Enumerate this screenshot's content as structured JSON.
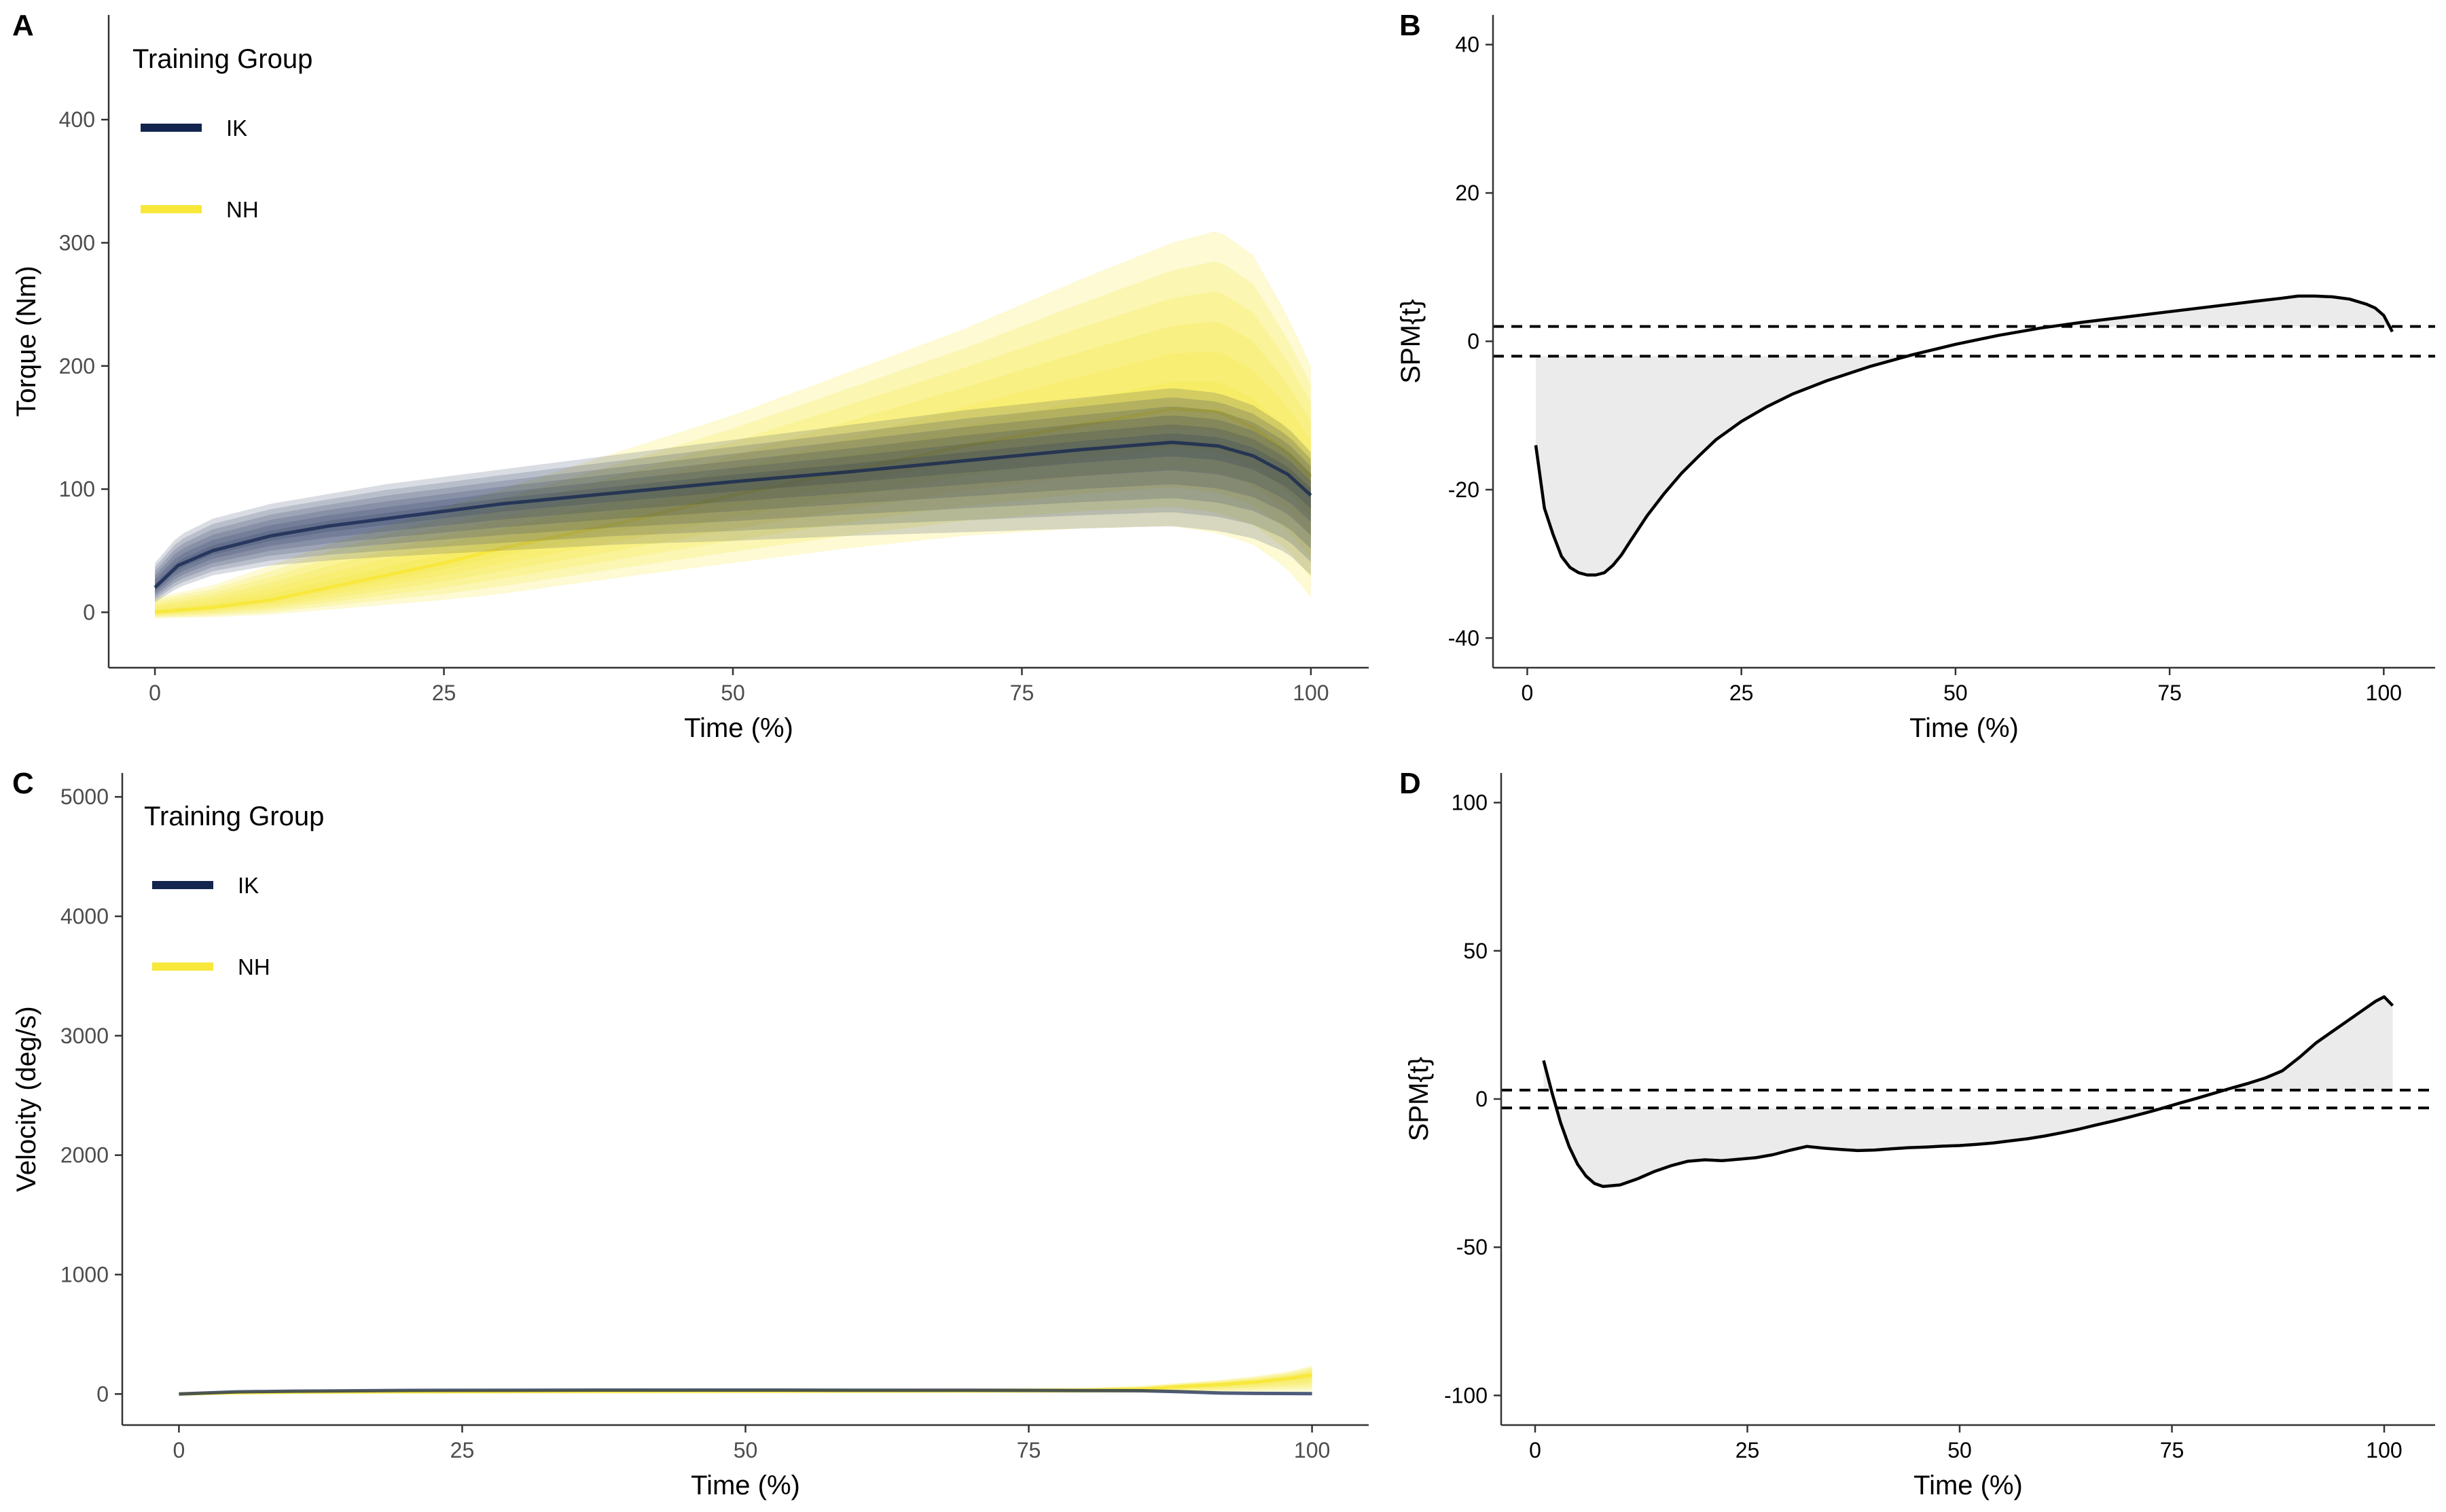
{
  "colors": {
    "IK": "#13244f",
    "NH": "#f7e83a",
    "spm_fill": "#ebebeb",
    "axis": "#333333"
  },
  "chart_data": [
    {
      "panel": "A",
      "type": "line",
      "xlabel": "Time (%)",
      "ylabel": "Torque (Nm)",
      "xlim": [
        -4,
        105
      ],
      "ylim": [
        -45,
        485
      ],
      "xticks": [
        0,
        25,
        50,
        75,
        100
      ],
      "yticks": [
        0,
        100,
        200,
        300,
        400
      ],
      "legend": {
        "title": "Training Group",
        "position": "top-left"
      },
      "series": [
        {
          "name": "IK",
          "x": [
            0,
            2,
            5,
            10,
            15,
            20,
            30,
            40,
            50,
            60,
            70,
            80,
            88,
            92,
            95,
            98,
            100
          ],
          "y": [
            20,
            38,
            50,
            62,
            70,
            76,
            88,
            97,
            106,
            114,
            123,
            132,
            138,
            135,
            127,
            112,
            95
          ],
          "band_low": [
            8,
            20,
            30,
            38,
            42,
            45,
            50,
            55,
            58,
            62,
            65,
            68,
            70,
            66,
            60,
            48,
            30
          ],
          "band_high": [
            40,
            62,
            76,
            88,
            96,
            104,
            116,
            128,
            140,
            152,
            164,
            174,
            182,
            178,
            168,
            150,
            130
          ]
        },
        {
          "name": "NH",
          "x": [
            0,
            5,
            10,
            15,
            20,
            25,
            30,
            40,
            50,
            60,
            70,
            80,
            88,
            92,
            95,
            98,
            100
          ],
          "y": [
            0,
            4,
            10,
            20,
            30,
            40,
            52,
            72,
            95,
            115,
            135,
            152,
            165,
            163,
            150,
            130,
            110
          ],
          "band_low": [
            -5,
            -4,
            -2,
            2,
            6,
            10,
            15,
            28,
            40,
            52,
            62,
            68,
            70,
            64,
            55,
            35,
            12
          ],
          "band_high": [
            12,
            22,
            38,
            55,
            70,
            85,
            100,
            130,
            160,
            195,
            230,
            270,
            300,
            310,
            290,
            240,
            200
          ]
        }
      ]
    },
    {
      "panel": "B",
      "type": "line",
      "xlabel": "Time (%)",
      "ylabel": "SPM{t}",
      "xlim": [
        -4,
        106
      ],
      "ylim": [
        -44,
        44
      ],
      "xticks": [
        0,
        25,
        50,
        75,
        100
      ],
      "yticks": [
        -40,
        -20,
        0,
        20,
        40
      ],
      "threshold": 2,
      "x": [
        1,
        2,
        3,
        4,
        5,
        6,
        7,
        8,
        9,
        10,
        11,
        12,
        14,
        16,
        18,
        20,
        22,
        25,
        28,
        31,
        35,
        40,
        45,
        50,
        55,
        60,
        65,
        70,
        75,
        80,
        85,
        88,
        90,
        92,
        94,
        96,
        98,
        99,
        100,
        101
      ],
      "y": [
        -14,
        -22.5,
        -26,
        -29,
        -30.5,
        -31.2,
        -31.5,
        -31.5,
        -31.2,
        -30.2,
        -28.8,
        -27,
        -23.5,
        -20.5,
        -17.8,
        -15.5,
        -13.3,
        -10.8,
        -8.8,
        -7.1,
        -5.3,
        -3.4,
        -1.8,
        -0.4,
        0.8,
        1.8,
        2.6,
        3.3,
        4,
        4.7,
        5.4,
        5.8,
        6.1,
        6.1,
        6,
        5.7,
        5,
        4.5,
        3.5,
        1.3
      ]
    },
    {
      "panel": "C",
      "type": "line",
      "xlabel": "Time (%)",
      "ylabel": "Velocity (deg/s)",
      "xlim": [
        -5,
        105
      ],
      "ylim": [
        -260,
        5200
      ],
      "xticks": [
        0,
        25,
        50,
        75,
        100
      ],
      "yticks": [
        0,
        1000,
        2000,
        3000,
        4000,
        5000
      ],
      "legend": {
        "title": "Training Group",
        "position": "top-left"
      },
      "series": [
        {
          "name": "IK",
          "x": [
            0,
            5,
            10,
            20,
            30,
            40,
            50,
            60,
            70,
            80,
            85,
            88,
            92,
            95,
            100
          ],
          "y": [
            0,
            18,
            24,
            30,
            32,
            33,
            33,
            32,
            31,
            29,
            27,
            20,
            8,
            5,
            3
          ]
        },
        {
          "name": "NH",
          "x": [
            0,
            5,
            10,
            20,
            30,
            40,
            50,
            60,
            70,
            80,
            85,
            88,
            92,
            95,
            98,
            100
          ],
          "y": [
            0,
            10,
            16,
            20,
            22,
            24,
            25,
            26,
            27,
            30,
            40,
            60,
            80,
            100,
            130,
            160
          ],
          "band_low": [
            -8,
            -4,
            -2,
            0,
            2,
            4,
            5,
            6,
            7,
            8,
            10,
            12,
            14,
            16,
            18,
            20
          ],
          "band_high": [
            8,
            22,
            30,
            36,
            38,
            40,
            42,
            44,
            46,
            55,
            70,
            90,
            120,
            150,
            190,
            240
          ]
        }
      ]
    },
    {
      "panel": "D",
      "type": "line",
      "xlabel": "Time (%)",
      "ylabel": "SPM{t}",
      "xlim": [
        -4,
        106
      ],
      "ylim": [
        -110,
        110
      ],
      "xticks": [
        0,
        25,
        50,
        75,
        100
      ],
      "yticks": [
        -100,
        -50,
        0,
        50,
        100
      ],
      "threshold": 3,
      "x": [
        1,
        2,
        3,
        4,
        5,
        6,
        7,
        8,
        10,
        12,
        14,
        16,
        18,
        20,
        22,
        24,
        26,
        28,
        30,
        32,
        34,
        36,
        38,
        40,
        42,
        44,
        46,
        48,
        50,
        52,
        54,
        56,
        58,
        60,
        62,
        64,
        66,
        68,
        70,
        72,
        74,
        76,
        78,
        80,
        82,
        84,
        86,
        88,
        90,
        92,
        94,
        96,
        98,
        99,
        100,
        101
      ],
      "y": [
        13,
        2,
        -8,
        -16,
        -22,
        -26,
        -28.5,
        -29.5,
        -29,
        -27,
        -24.5,
        -22.5,
        -21,
        -20.5,
        -20.8,
        -20.3,
        -19.8,
        -18.8,
        -17.3,
        -16,
        -16.6,
        -17,
        -17.4,
        -17.2,
        -16.8,
        -16.4,
        -16.2,
        -15.9,
        -15.7,
        -15.3,
        -14.8,
        -14.1,
        -13.4,
        -12.5,
        -11.4,
        -10.2,
        -8.8,
        -7.5,
        -6.1,
        -4.6,
        -3,
        -1.3,
        0.3,
        2,
        3.7,
        5.3,
        7.1,
        9.5,
        14,
        19,
        23,
        27,
        31,
        33,
        34.5,
        31.5
      ]
    }
  ]
}
